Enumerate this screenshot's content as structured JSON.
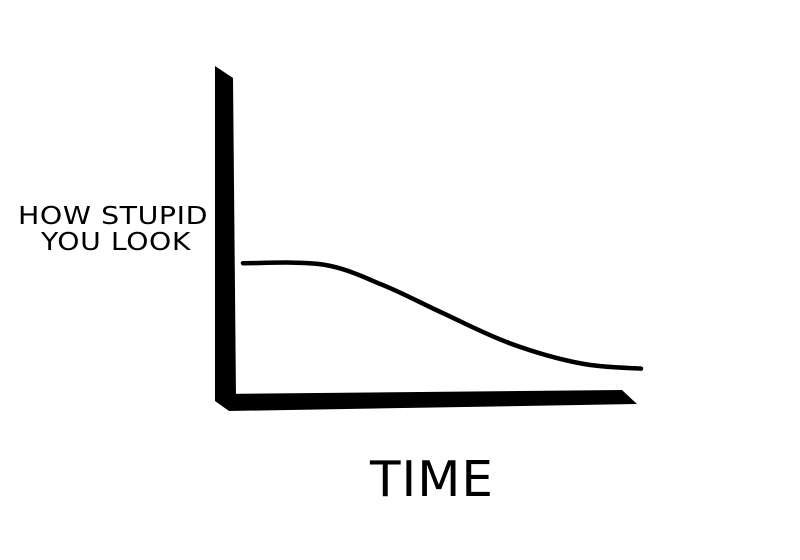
{
  "chart_data": {
    "type": "line",
    "title": "",
    "xlabel": "TIME",
    "ylabel_lines": [
      "HOW STUPID",
      "YOU LOOK"
    ],
    "grid": false,
    "legend": "none",
    "x": [
      0.0,
      0.2,
      0.35,
      0.5,
      0.67,
      0.85,
      1.0
    ],
    "y": [
      0.515,
      0.51,
      0.43,
      0.32,
      0.2,
      0.12,
      0.1
    ],
    "xlim": [
      0,
      1
    ],
    "ylim": [
      0,
      1
    ],
    "line_color": "#000000",
    "axis_color": "#000000"
  }
}
